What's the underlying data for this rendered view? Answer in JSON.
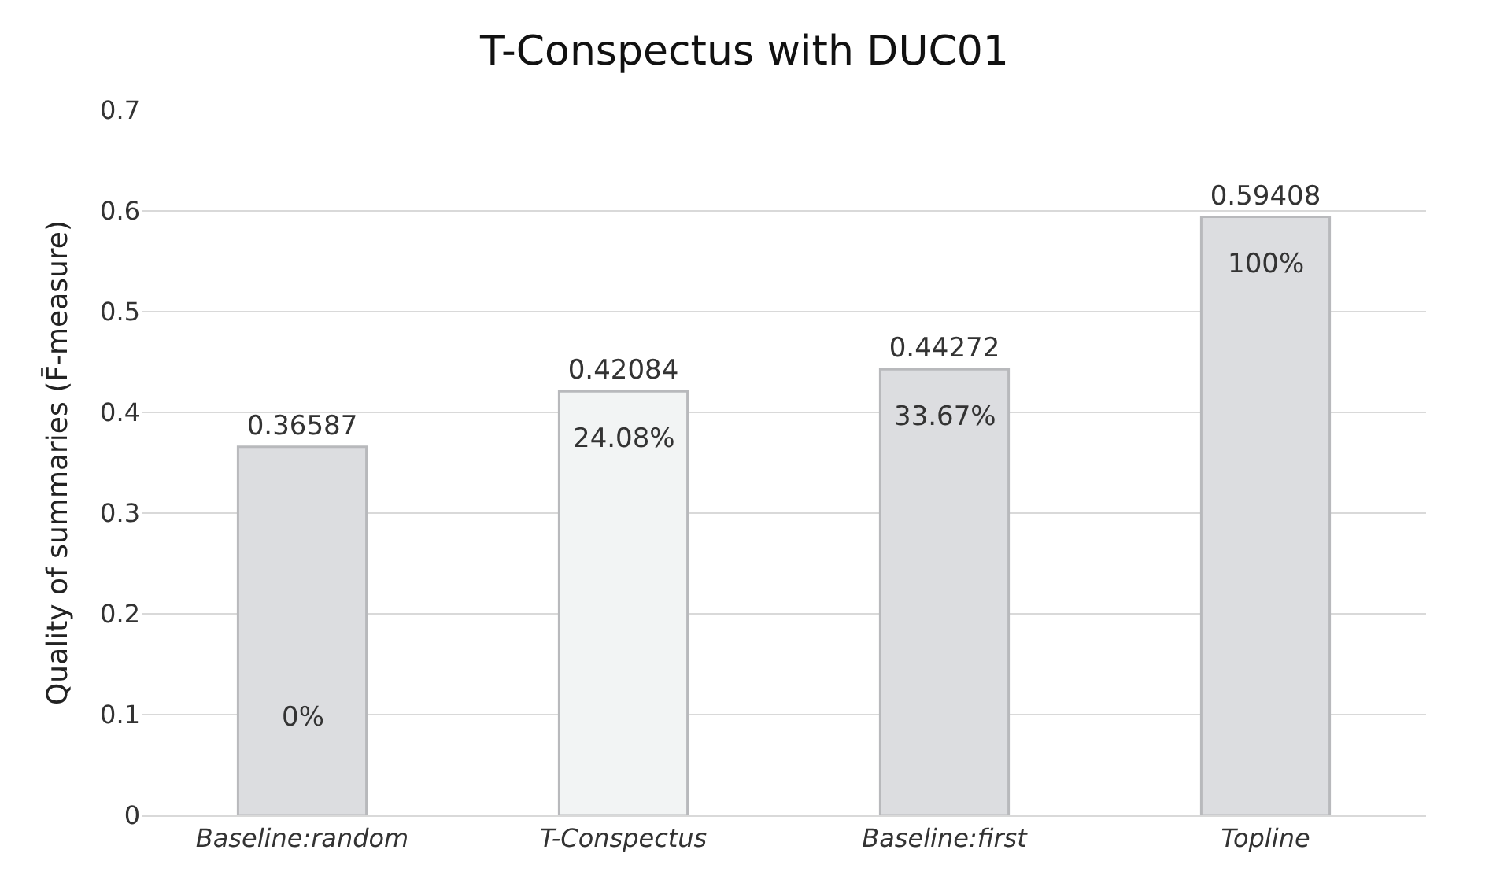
{
  "chart_data": {
    "type": "bar",
    "title": "T-Conspectus with DUC01",
    "ylabel": "Quality of summaries (F̄-measure)",
    "categories": [
      "Baseline:random",
      "T-Conspectus",
      "Baseline:first",
      "Topline"
    ],
    "values": [
      0.36587,
      0.42084,
      0.44272,
      0.59408
    ],
    "colors": [
      "#dcdde0",
      "#f2f4f4",
      "#dcdde0",
      "#dcdde0"
    ],
    "data_labels": true,
    "annotations": [
      "0%",
      "24.08%",
      "33.67%",
      "100%"
    ],
    "ylim": [
      0,
      0.7
    ],
    "yticks": [
      {
        "value": 0,
        "label": "0"
      },
      0.1,
      0.2,
      0.3,
      0.4,
      0.5,
      0.6,
      0.7
    ],
    "grid": "y"
  }
}
